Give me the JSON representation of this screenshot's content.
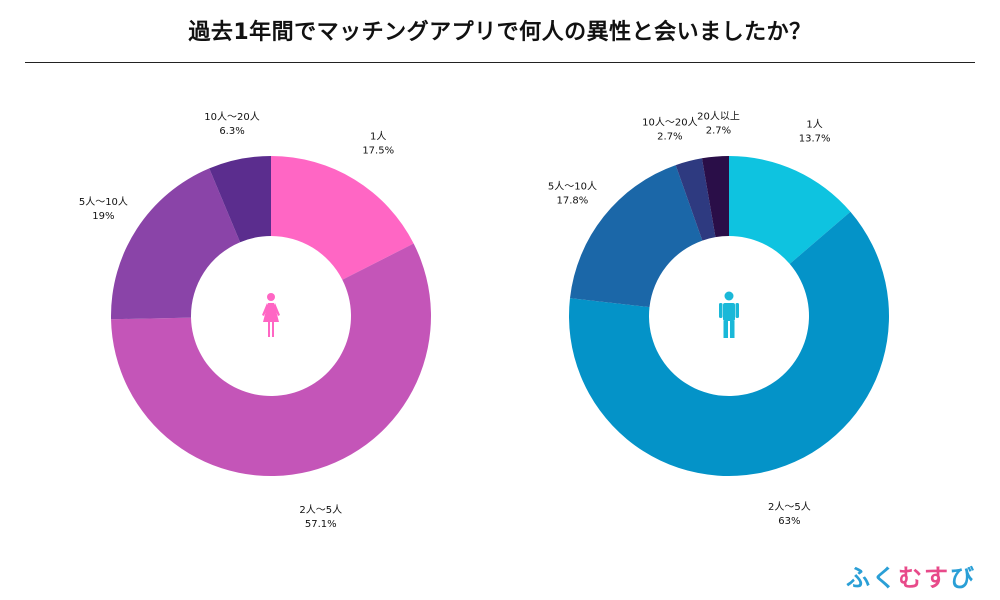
{
  "title": "過去1年間でマッチングアプリで何人の異性と会いましたか？",
  "brand": {
    "text": "ふくむすび",
    "letter_colors": [
      "#2a9fd6",
      "#2a9fd6",
      "#e84a8a",
      "#e84a8a",
      "#2a9fd6"
    ]
  },
  "icons": {
    "left_center": "female-person-icon",
    "right_center": "male-person-icon"
  },
  "chart_data": [
    {
      "type": "pie",
      "subtype": "donut",
      "group": "female",
      "categories": [
        "1人",
        "2人〜5人",
        "5人〜10人",
        "10人〜20人"
      ],
      "values": [
        17.5,
        57.1,
        19,
        6.3
      ],
      "value_labels": [
        "17.5%",
        "57.1%",
        "19%",
        "6.3%"
      ],
      "colors": [
        "#ff66c4",
        "#c455b8",
        "#8a44a8",
        "#5b2d8e"
      ],
      "icon_color": "#ff66c4"
    },
    {
      "type": "pie",
      "subtype": "donut",
      "group": "male",
      "categories": [
        "1人",
        "2人〜5人",
        "5人〜10人",
        "10人〜20人",
        "20人以上"
      ],
      "values": [
        13.7,
        63,
        17.8,
        2.7,
        2.7
      ],
      "value_labels": [
        "13.7%",
        "63%",
        "17.8%",
        "2.7%",
        "2.7%"
      ],
      "colors": [
        "#0ec3e0",
        "#0493c8",
        "#1b67a8",
        "#2e3a80",
        "#2a0e48"
      ],
      "icon_color": "#1ab8d8"
    }
  ]
}
